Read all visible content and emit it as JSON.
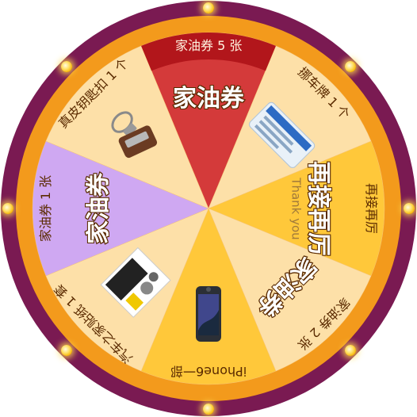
{
  "wheel": {
    "colors": {
      "outer_ring": "#7a1a52",
      "inner_ring": "#f39a1c",
      "red": "#d43a3a",
      "light": "#fde0a8",
      "yellow": "#ffc83a",
      "purple": "#cfa8f2"
    },
    "segments": [
      {
        "id": "gas5",
        "label": "家油券 5 张",
        "title": "家油券",
        "subtitle": "",
        "icon": "",
        "color": "#d43a3a",
        "on_red": true
      },
      {
        "id": "plate",
        "label": "挪车牌 1 个",
        "title": "",
        "subtitle": "",
        "icon": "parking-card-icon",
        "color": "#fde0a8",
        "on_red": false
      },
      {
        "id": "again",
        "label": "再接再厉",
        "title": "再接再厉",
        "subtitle": "Thank you",
        "icon": "",
        "color": "#ffc83a",
        "on_red": false
      },
      {
        "id": "gas2",
        "label": "家油券 2 张",
        "title": "家油券",
        "subtitle": "",
        "icon": "",
        "color": "#fde0a8",
        "on_red": false
      },
      {
        "id": "iphone",
        "label": "iPhone6一部",
        "title": "",
        "subtitle": "",
        "icon": "iphone-icon",
        "color": "#ffc83a",
        "on_red": false
      },
      {
        "id": "stickers",
        "label": "汽车之家贴纸 1 套",
        "title": "",
        "subtitle": "",
        "icon": "sticker-pack-icon",
        "color": "#fde0a8",
        "on_red": false
      },
      {
        "id": "gas1",
        "label": "家油券 1 张",
        "title": "家油券",
        "subtitle": "",
        "icon": "",
        "color": "#cfa8f2",
        "on_red": false
      },
      {
        "id": "keychain",
        "label": "真皮钥匙扣 1 个",
        "title": "",
        "subtitle": "",
        "icon": "keychain-icon",
        "color": "#fde0a8",
        "on_red": false
      }
    ]
  }
}
